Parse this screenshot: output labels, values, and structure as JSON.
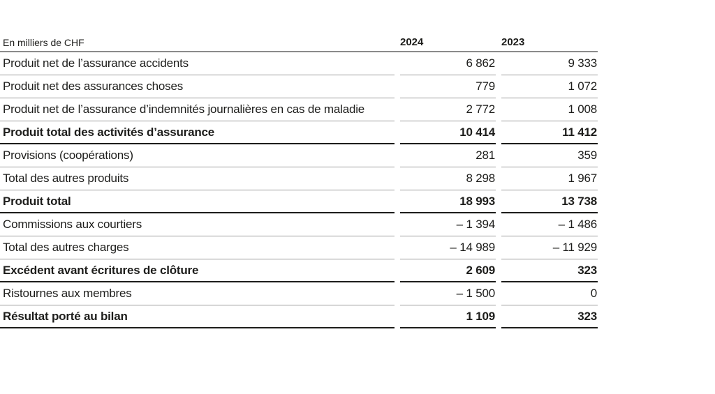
{
  "page": {
    "background": "#ffffff"
  },
  "table": {
    "unit_label": "En milliers de CHF",
    "columns": [
      "2024",
      "2023"
    ],
    "colors": {
      "text": "#1d1d1b",
      "header_rule": "#8a8a8a",
      "row_rule": "#9b9b9b",
      "bold_rule": "#1d1d1b"
    },
    "rows": [
      {
        "label": "Produit net de l’assurance accidents",
        "v2024": "6 862",
        "v2023": "9 333",
        "bold": false
      },
      {
        "label": "Produit net des assurances choses",
        "v2024": "779",
        "v2023": "1 072",
        "bold": false
      },
      {
        "label": "Produit net de l’assurance d’indemnités journalières en cas de maladie",
        "v2024": "2 772",
        "v2023": "1 008",
        "bold": false
      },
      {
        "label": "Produit total des activités d’assurance",
        "v2024": "10 414",
        "v2023": "11 412",
        "bold": true
      },
      {
        "label": "Provisions (coopérations)",
        "v2024": "281",
        "v2023": "359",
        "bold": false
      },
      {
        "label": "Total des autres produits",
        "v2024": "8 298",
        "v2023": "1 967",
        "bold": false
      },
      {
        "label": "Produit total",
        "v2024": "18 993",
        "v2023": "13 738",
        "bold": true
      },
      {
        "label": "Commissions aux courtiers",
        "v2024": "– 1 394",
        "v2023": "– 1 486",
        "bold": false
      },
      {
        "label": "Total des autres charges",
        "v2024": "– 14 989",
        "v2023": "– 11 929",
        "bold": false
      },
      {
        "label": "Excédent avant écritures de clôture",
        "v2024": "2 609",
        "v2023": "323",
        "bold": true
      },
      {
        "label": "Ristournes aux membres",
        "v2024": "– 1 500",
        "v2023": "0",
        "bold": false
      },
      {
        "label": "Résultat porté au bilan",
        "v2024": "1 109",
        "v2023": "323",
        "bold": true
      }
    ]
  }
}
